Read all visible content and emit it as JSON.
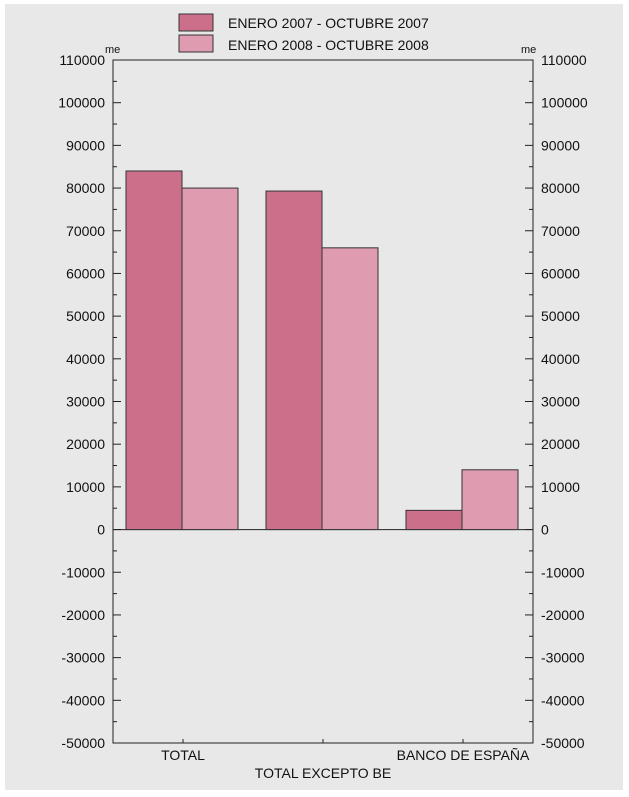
{
  "chart_data": {
    "type": "bar",
    "title": "",
    "xlabel": "",
    "ylabel": "",
    "unit_left": "me",
    "unit_right": "me",
    "ylim": [
      -50000,
      110000
    ],
    "yticks": [
      110000,
      100000,
      90000,
      80000,
      70000,
      60000,
      50000,
      40000,
      30000,
      20000,
      10000,
      0,
      -10000,
      -20000,
      -30000,
      -40000,
      -50000
    ],
    "categories": [
      "TOTAL",
      "TOTAL EXCEPTO BE",
      "BANCO DE ESPAÑA"
    ],
    "series": [
      {
        "name": "ENERO 2007 - OCTUBRE 2007",
        "values": [
          84000,
          79300,
          4500
        ],
        "color": "#cc6f8a"
      },
      {
        "name": "ENERO 2008 - OCTUBRE 2008",
        "values": [
          80000,
          66000,
          14000
        ],
        "color": "#df9bb0"
      }
    ],
    "legend_position": "top-center",
    "grid": false,
    "background": "#e8e8e8"
  }
}
